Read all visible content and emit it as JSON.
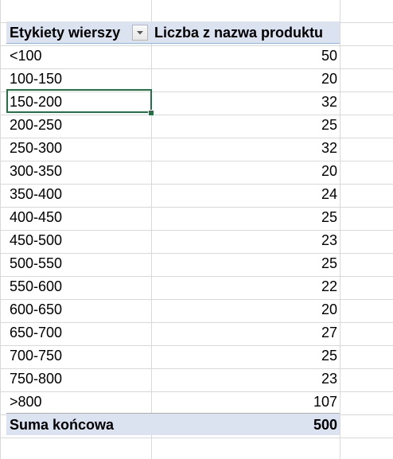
{
  "pivot": {
    "row_labels_header": "Etykiety wierszy",
    "value_header": "Liczba z nazwa produktu",
    "rows": [
      {
        "label": "<100",
        "value": "50"
      },
      {
        "label": "100-150",
        "value": "20"
      },
      {
        "label": "150-200",
        "value": "32"
      },
      {
        "label": "200-250",
        "value": "25"
      },
      {
        "label": "250-300",
        "value": "32"
      },
      {
        "label": "300-350",
        "value": "20"
      },
      {
        "label": "350-400",
        "value": "24"
      },
      {
        "label": "400-450",
        "value": "25"
      },
      {
        "label": "450-500",
        "value": "23"
      },
      {
        "label": "500-550",
        "value": "25"
      },
      {
        "label": "550-600",
        "value": "22"
      },
      {
        "label": "600-650",
        "value": "20"
      },
      {
        "label": "650-700",
        "value": "27"
      },
      {
        "label": "700-750",
        "value": "25"
      },
      {
        "label": "750-800",
        "value": "23"
      },
      {
        "label": ">800",
        "value": "107"
      }
    ],
    "total_label": "Suma końcowa",
    "total_value": "500",
    "filter_icon": "filter-dropdown-icon",
    "selected_cell_label": "150-200"
  },
  "colors": {
    "header_bg": "#dbe3f1",
    "header_border": "#9bb2d8",
    "selection": "#217346",
    "gridline": "#d9d9d9"
  }
}
